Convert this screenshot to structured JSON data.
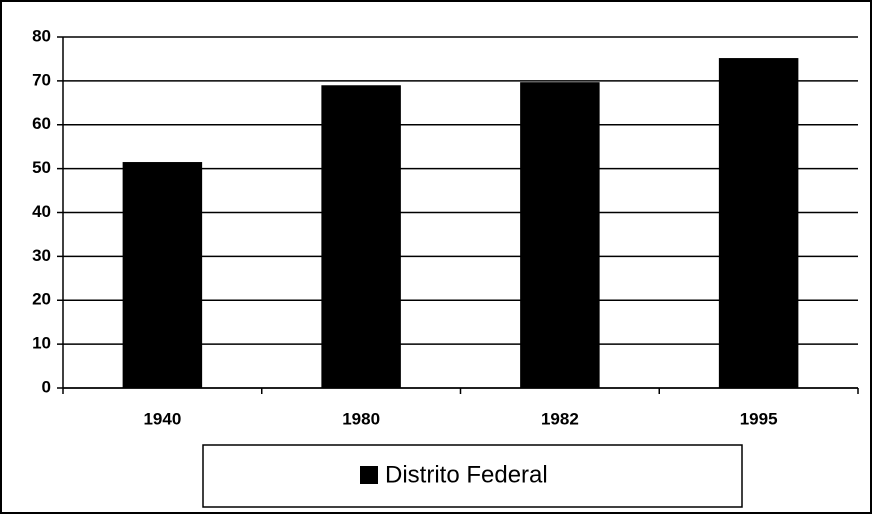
{
  "chart_data": {
    "type": "bar",
    "categories": [
      "1940",
      "1980",
      "1982",
      "1995"
    ],
    "series": [
      {
        "name": "Distrito Federal",
        "color": "#000000",
        "values": [
          51.5,
          69,
          69.7,
          75.2
        ]
      }
    ],
    "ylim": [
      0,
      80
    ],
    "yticks": [
      0,
      10,
      20,
      30,
      40,
      50,
      60,
      70,
      80
    ],
    "grid": true,
    "legend": "bottom"
  }
}
